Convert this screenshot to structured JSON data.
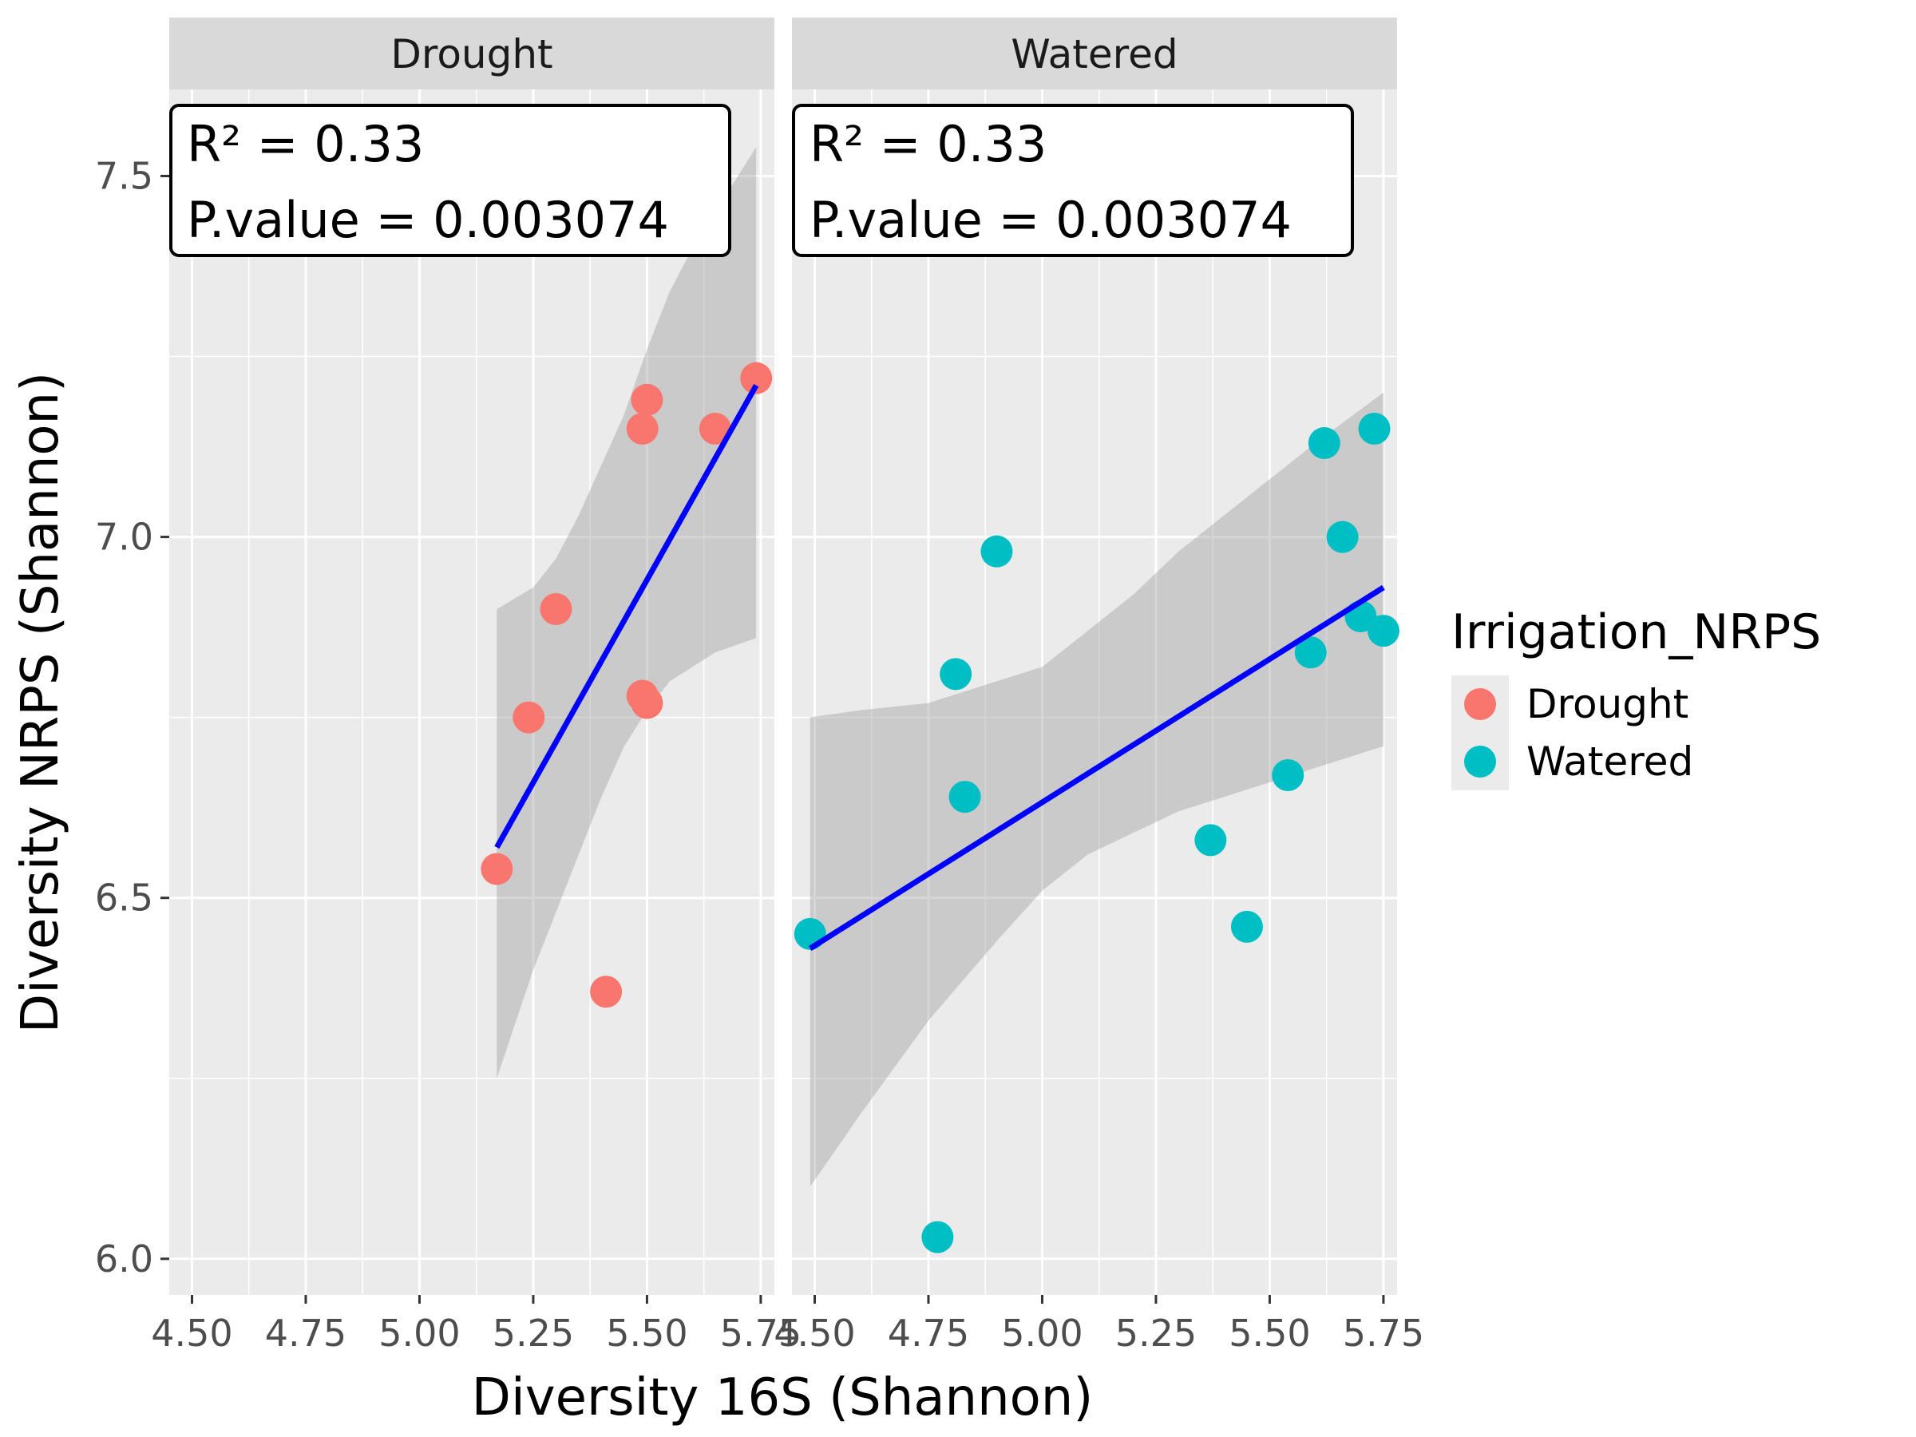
{
  "chart_data": {
    "type": "scatter",
    "facet_variable": "Irrigation_NRPS",
    "xlabel": "Diversity 16S (Shannon)",
    "ylabel": "Diversity NRPS (Shannon)",
    "xlim": [
      4.45,
      5.78
    ],
    "ylim": [
      5.95,
      7.62
    ],
    "x_ticks": [
      4.5,
      4.75,
      5.0,
      5.25,
      5.5,
      5.75
    ],
    "x_tick_labels": [
      "4.50",
      "4.75",
      "5.00",
      "5.25",
      "5.50",
      "5.75"
    ],
    "y_ticks": [
      6.0,
      6.5,
      7.0,
      7.5
    ],
    "y_tick_labels": [
      "6.0",
      "6.5",
      "7.0",
      "7.5"
    ],
    "grid": true,
    "legend": {
      "title": "Irrigation_NRPS",
      "position": "right",
      "entries": [
        {
          "label": "Drought",
          "color": "#F8766D"
        },
        {
          "label": "Watered",
          "color": "#00BFC4"
        }
      ]
    },
    "panels": [
      {
        "strip": "Drought",
        "color": "#F8766D",
        "stat_r2": "R² = 0.33",
        "stat_p": "P.value = 0.003074",
        "points": [
          {
            "x": 5.17,
            "y": 6.54
          },
          {
            "x": 5.24,
            "y": 6.75
          },
          {
            "x": 5.3,
            "y": 6.9
          },
          {
            "x": 5.41,
            "y": 6.37
          },
          {
            "x": 5.49,
            "y": 7.15
          },
          {
            "x": 5.5,
            "y": 7.19
          },
          {
            "x": 5.49,
            "y": 6.78
          },
          {
            "x": 5.5,
            "y": 6.77
          },
          {
            "x": 5.65,
            "y": 7.15
          },
          {
            "x": 5.74,
            "y": 7.22
          }
        ],
        "fit": {
          "x": [
            5.17,
            5.74
          ],
          "y": [
            6.57,
            7.21
          ]
        },
        "ci_band": [
          {
            "x": 5.17,
            "lo": 6.25,
            "hi": 6.9
          },
          {
            "x": 5.25,
            "lo": 6.4,
            "hi": 6.93
          },
          {
            "x": 5.3,
            "lo": 6.48,
            "hi": 6.97
          },
          {
            "x": 5.35,
            "lo": 6.56,
            "hi": 7.03
          },
          {
            "x": 5.4,
            "lo": 6.64,
            "hi": 7.1
          },
          {
            "x": 5.45,
            "lo": 6.71,
            "hi": 7.17
          },
          {
            "x": 5.5,
            "lo": 6.76,
            "hi": 7.26
          },
          {
            "x": 5.55,
            "lo": 6.8,
            "hi": 7.34
          },
          {
            "x": 5.6,
            "lo": 6.82,
            "hi": 7.4
          },
          {
            "x": 5.65,
            "lo": 6.84,
            "hi": 7.45
          },
          {
            "x": 5.74,
            "lo": 6.86,
            "hi": 7.54
          }
        ]
      },
      {
        "strip": "Watered",
        "color": "#00BFC4",
        "stat_r2": "R² = 0.33",
        "stat_p": "P.value = 0.003074",
        "points": [
          {
            "x": 4.49,
            "y": 6.45
          },
          {
            "x": 4.77,
            "y": 6.03
          },
          {
            "x": 4.81,
            "y": 6.81
          },
          {
            "x": 4.83,
            "y": 6.64
          },
          {
            "x": 4.9,
            "y": 6.98
          },
          {
            "x": 5.37,
            "y": 6.58
          },
          {
            "x": 5.45,
            "y": 6.46
          },
          {
            "x": 5.54,
            "y": 6.67
          },
          {
            "x": 5.59,
            "y": 6.84
          },
          {
            "x": 5.62,
            "y": 7.13
          },
          {
            "x": 5.66,
            "y": 7.0
          },
          {
            "x": 5.7,
            "y": 6.89
          },
          {
            "x": 5.73,
            "y": 7.15
          },
          {
            "x": 5.75,
            "y": 6.87
          }
        ],
        "fit": {
          "x": [
            4.49,
            5.75
          ],
          "y": [
            6.43,
            6.93
          ]
        },
        "ci_band": [
          {
            "x": 4.49,
            "lo": 6.1,
            "hi": 6.75
          },
          {
            "x": 4.6,
            "lo": 6.2,
            "hi": 6.76
          },
          {
            "x": 4.75,
            "lo": 6.33,
            "hi": 6.77
          },
          {
            "x": 4.9,
            "lo": 6.44,
            "hi": 6.8
          },
          {
            "x": 5.0,
            "lo": 6.51,
            "hi": 6.82
          },
          {
            "x": 5.1,
            "lo": 6.56,
            "hi": 6.87
          },
          {
            "x": 5.2,
            "lo": 6.59,
            "hi": 6.92
          },
          {
            "x": 5.3,
            "lo": 6.62,
            "hi": 6.98
          },
          {
            "x": 5.4,
            "lo": 6.64,
            "hi": 7.03
          },
          {
            "x": 5.5,
            "lo": 6.66,
            "hi": 7.08
          },
          {
            "x": 5.6,
            "lo": 6.68,
            "hi": 7.13
          },
          {
            "x": 5.75,
            "lo": 6.71,
            "hi": 7.2
          }
        ]
      }
    ]
  }
}
